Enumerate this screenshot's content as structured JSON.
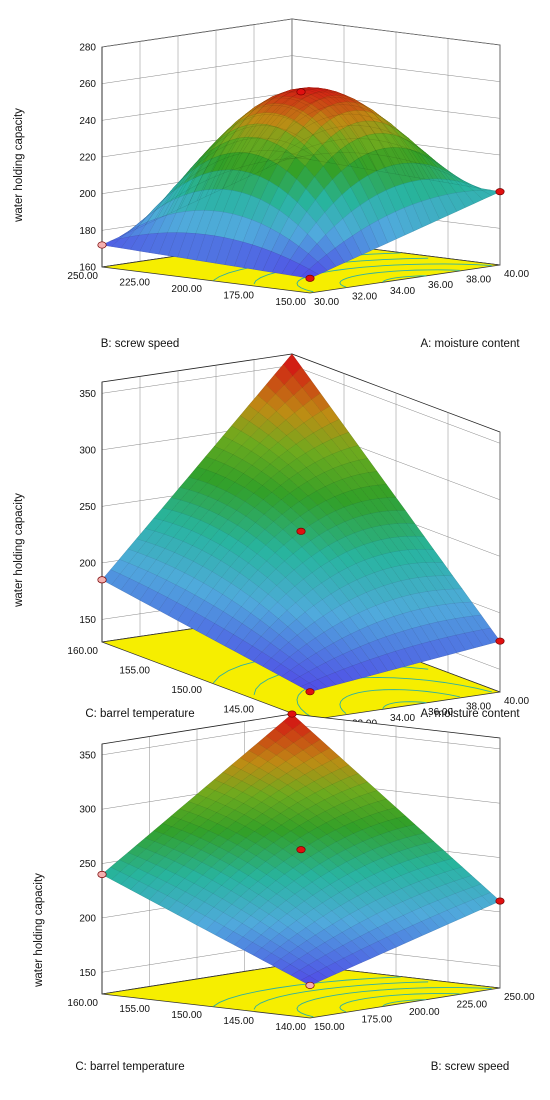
{
  "chart_data": [
    {
      "type": "surface",
      "zlabel": "water holding capacity",
      "xlabel": "A: moisture content",
      "ylabel": "B: screw speed",
      "x_ticks": [
        "30.00",
        "32.00",
        "34.00",
        "36.00",
        "38.00",
        "40.00"
      ],
      "y_ticks": [
        "150.00",
        "175.00",
        "200.00",
        "225.00",
        "250.00"
      ],
      "z_ticks": [
        "160",
        "180",
        "200",
        "220",
        "240",
        "260",
        "280"
      ],
      "xlim": [
        30,
        40
      ],
      "ylim": [
        150,
        250
      ],
      "zlim": [
        160,
        280
      ],
      "corners": {
        "x0y0": 168,
        "x1y0": 200,
        "x0y1": 172,
        "x1y1": 205
      },
      "center": 255,
      "peak": 280,
      "design_points": [
        {
          "x": 35,
          "y": 200,
          "z": 255,
          "color": "#e01010"
        },
        {
          "x": 30,
          "y": 150,
          "z": 168,
          "color": "#e01010"
        },
        {
          "x": 40,
          "y": 150,
          "z": 200,
          "color": "#e01010"
        },
        {
          "x": 30,
          "y": 250,
          "z": 172,
          "color": "#f4b0b0"
        }
      ]
    },
    {
      "type": "surface",
      "zlabel": "water holding capacity",
      "xlabel": "A: moisture content",
      "ylabel": "C: barrel temperature",
      "x_ticks": [
        "30.00",
        "32.00",
        "34.00",
        "36.00",
        "38.00",
        "40.00"
      ],
      "y_ticks": [
        "140.00",
        "145.00",
        "150.00",
        "155.00",
        "160.00"
      ],
      "z_ticks": [
        "150",
        "200",
        "250",
        "300",
        "350"
      ],
      "xlim": [
        30,
        40
      ],
      "ylim": [
        140,
        160
      ],
      "zlim": [
        130,
        360
      ],
      "corners": {
        "x0y0": 155,
        "x1y0": 175,
        "x0y1": 185,
        "x1y1": 360
      },
      "center": 250,
      "peak": 360,
      "design_points": [
        {
          "x": 35,
          "y": 150,
          "z": 250,
          "color": "#e01010"
        },
        {
          "x": 30,
          "y": 140,
          "z": 155,
          "color": "#e01010"
        },
        {
          "x": 40,
          "y": 140,
          "z": 175,
          "color": "#e01010"
        },
        {
          "x": 30,
          "y": 160,
          "z": 185,
          "color": "#f4b0b0"
        }
      ]
    },
    {
      "type": "surface",
      "zlabel": "water holding capacity",
      "xlabel": "B: screw speed",
      "ylabel": "C: barrel temperature",
      "x_ticks": [
        "150.00",
        "175.00",
        "200.00",
        "225.00",
        "250.00"
      ],
      "y_ticks": [
        "140.00",
        "145.00",
        "150.00",
        "155.00",
        "160.00"
      ],
      "z_ticks": [
        "150",
        "200",
        "250",
        "300",
        "350"
      ],
      "xlim": [
        150,
        250
      ],
      "ylim": [
        140,
        160
      ],
      "zlim": [
        130,
        360
      ],
      "corners": {
        "x0y0": 160,
        "x1y0": 210,
        "x0y1": 240,
        "x1y1": 360
      },
      "center": 260,
      "peak": 360,
      "design_points": [
        {
          "x": 200,
          "y": 150,
          "z": 260,
          "color": "#e01010"
        },
        {
          "x": 150,
          "y": 140,
          "z": 160,
          "color": "#f4b0b0"
        },
        {
          "x": 250,
          "y": 140,
          "z": 210,
          "color": "#e01010"
        },
        {
          "x": 150,
          "y": 160,
          "z": 240,
          "color": "#f4b0b0"
        },
        {
          "x": 250,
          "y": 160,
          "z": 360,
          "color": "#e01010"
        }
      ]
    }
  ]
}
